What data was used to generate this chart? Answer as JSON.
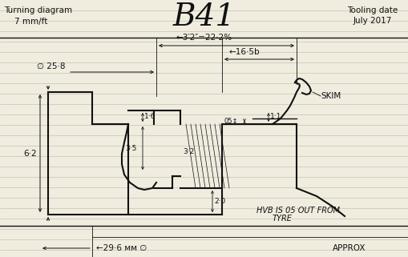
{
  "title": "B41",
  "top_left_line1": "Turning diagram",
  "top_left_line2": "7 mm/ft",
  "top_right_line1": "Tooling date",
  "top_right_line2": "July 2017",
  "dim_top": "←3′2″=22·2%",
  "dim_right": "←16·5b",
  "dim_diam": "∅ 25·8→",
  "dim_16": "1·6",
  "dim_35": "3·5",
  "dim_32": "3·2",
  "dim_05": "05↕",
  "dim_11": "1·1",
  "dim_20": "2·0",
  "dim_62": "6·2",
  "dim_bottom": "←29·6 мм ∅",
  "hub_text": "HUB IS 05 OUT FROM\n       TYRE",
  "approx_text": "APPROX",
  "skim_text": "SKIM",
  "bg_color": "#f0ece0",
  "line_color": "#111111",
  "ruled_color": "#c0b898"
}
